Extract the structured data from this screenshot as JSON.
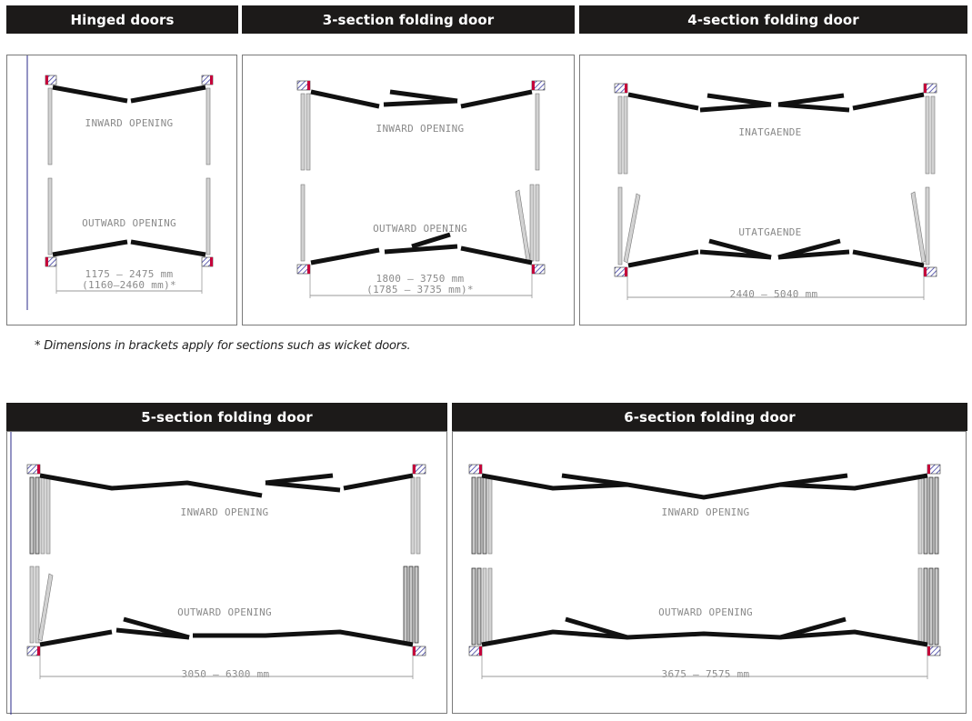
{
  "colors": {
    "header_bg": "#1c1a19",
    "header_text": "#ffffff",
    "leaf": "#111111",
    "folded_leaf": "#cfcfcf",
    "hinge_red": "#c4003a",
    "wall_hatch": "#3a3aa0",
    "dimension": "#9a9a9a"
  },
  "panels": [
    {
      "title": "Hinged doors",
      "inward_label": "INWARD OPENING",
      "outward_label": "OUTWARD OPENING",
      "dimension": "1175 – 2475 mm",
      "dimension_alt": "(1160–2460 mm)*"
    },
    {
      "title": "3-section folding door",
      "inward_label": "INWARD OPENING",
      "outward_label": "OUTWARD OPENING",
      "dimension": "1800 – 3750 mm",
      "dimension_alt": "(1785 – 3735 mm)*"
    },
    {
      "title": "4-section folding door",
      "inward_label": "INATGAENDE",
      "outward_label": "UTATGAENDE",
      "dimension": "2440 – 5040 mm"
    },
    {
      "title": "5-section folding door",
      "inward_label": "INWARD OPENING",
      "outward_label": "OUTWARD OPENING",
      "dimension": "3050 – 6300 mm"
    },
    {
      "title": "6-section folding door",
      "inward_label": "INWARD OPENING",
      "outward_label": "OUTWARD OPENING",
      "dimension": "3675 – 7575 mm"
    }
  ],
  "footnote": "* Dimensions in brackets apply for sections such as wicket doors."
}
